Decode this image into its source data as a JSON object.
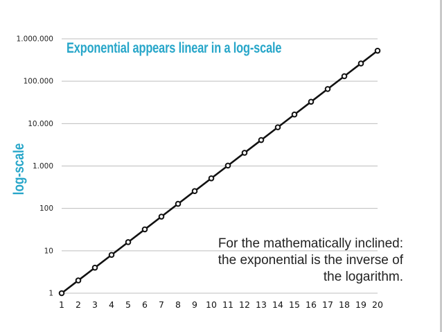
{
  "chart_data": {
    "type": "line",
    "title": "Exponential appears linear in a log-scale",
    "xlabel": "",
    "ylabel": "log-scale",
    "yscale": "log",
    "ylim": [
      1,
      1000000
    ],
    "xlim": [
      1,
      20
    ],
    "grid": true,
    "y_tick_values": [
      1,
      10,
      100,
      1000,
      10000,
      100000,
      1000000
    ],
    "y_tick_labels": [
      "1",
      "10",
      "100",
      "1.000",
      "10.000",
      "100.000",
      "1.000.000"
    ],
    "x": [
      1,
      2,
      3,
      4,
      5,
      6,
      7,
      8,
      9,
      10,
      11,
      12,
      13,
      14,
      15,
      16,
      17,
      18,
      19,
      20
    ],
    "x_tick_labels": [
      "1",
      "2",
      "3",
      "4",
      "5",
      "6",
      "7",
      "8",
      "9",
      "10",
      "11",
      "12",
      "13",
      "14",
      "15",
      "16",
      "17",
      "18",
      "19",
      "20"
    ],
    "series": [
      {
        "values": [
          1,
          2,
          4,
          8,
          16,
          32,
          64,
          128,
          256,
          512,
          1024,
          2048,
          4096,
          8192,
          16384,
          32768,
          65536,
          131072,
          262144,
          524288
        ]
      }
    ],
    "annotation": {
      "line1": "For the mathematically inclined:",
      "line2": "the exponential is the inverse of",
      "line3": "the logarithm."
    },
    "colors": {
      "accent": "#27a6c9",
      "line": "#111111",
      "grid": "#bdbdbd"
    }
  }
}
